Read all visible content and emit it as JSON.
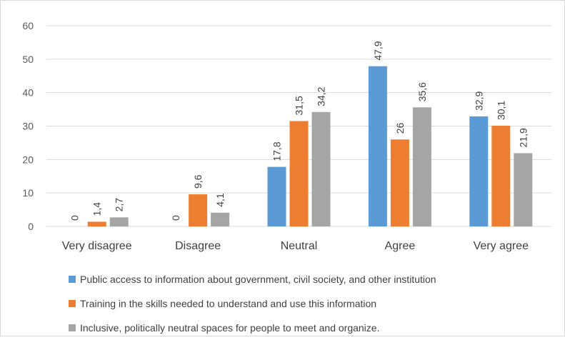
{
  "chart_data": {
    "type": "bar",
    "categories": [
      "Very disagree",
      "Disagree",
      "Neutral",
      "Agree",
      "Very agree"
    ],
    "series": [
      {
        "name": "Public access to information about government, civil society,  and other institution",
        "color": "#5b9bd5",
        "values": [
          0,
          0,
          17.8,
          47.9,
          32.9
        ],
        "labels": [
          "0",
          "0",
          "17,8",
          "47,9",
          "32,9"
        ]
      },
      {
        "name": "Training in the skills needed to understand and use this information",
        "color": "#ed7d31",
        "values": [
          1.4,
          9.6,
          31.5,
          26,
          30.1
        ],
        "labels": [
          "1,4",
          "9,6",
          "31,5",
          "26",
          "30,1"
        ]
      },
      {
        "name": "Inclusive, politically neutral spaces for people to meet and organize.",
        "color": "#a5a5a5",
        "values": [
          2.7,
          4.1,
          34.2,
          35.6,
          21.9
        ],
        "labels": [
          "2,7",
          "4,1",
          "34,2",
          "35,6",
          "21,9"
        ]
      }
    ],
    "ylim": [
      0,
      60
    ],
    "yticks": [
      0,
      10,
      20,
      30,
      40,
      50,
      60
    ],
    "grid": true,
    "legend_position": "bottom"
  }
}
